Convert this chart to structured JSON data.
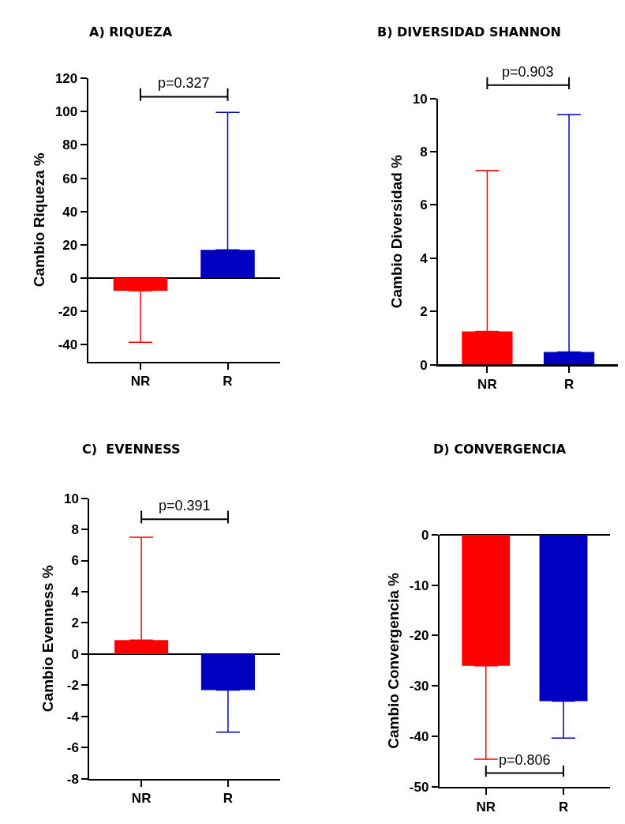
{
  "chart_data": [
    {
      "type": "bar",
      "title": "A) RIQUEZA",
      "ylabel": "Cambio Riqueza %",
      "categories": [
        "NR",
        "R"
      ],
      "values": [
        -7.5,
        17
      ],
      "colors": [
        "#ff0000",
        "#0000c0"
      ],
      "errors": [
        [
          -38.5,
          -7.5
        ],
        [
          17,
          99.5
        ]
      ],
      "ylim": [
        -50,
        120
      ],
      "yticks": [
        -40,
        -20,
        0,
        20,
        40,
        60,
        80,
        100,
        120
      ],
      "annotations": [
        "p=0.327"
      ]
    },
    {
      "type": "bar",
      "title": "B) DIVERSIDAD SHANNON",
      "ylabel": "Cambio Diversidad %",
      "categories": [
        "NR",
        "R"
      ],
      "values": [
        1.25,
        0.48
      ],
      "colors": [
        "#ff0000",
        "#0000c0"
      ],
      "errors": [
        [
          1.25,
          7.3
        ],
        [
          0.48,
          9.4
        ]
      ],
      "ylim": [
        0,
        10
      ],
      "yticks": [
        0,
        2,
        4,
        6,
        8,
        10
      ],
      "annotations": [
        "p=0.903"
      ]
    },
    {
      "type": "bar",
      "title": "C)  EVENNESS",
      "ylabel": "Cambio Evenness %",
      "categories": [
        "NR",
        "R"
      ],
      "values": [
        0.9,
        -2.3
      ],
      "colors": [
        "#ff0000",
        "#0000c0"
      ],
      "errors": [
        [
          0.9,
          7.5
        ],
        [
          -5,
          -2.3
        ]
      ],
      "ylim": [
        -8,
        10
      ],
      "yticks": [
        -8,
        -6,
        -4,
        -2,
        0,
        2,
        4,
        6,
        8,
        10
      ],
      "annotations": [
        "p=0.391"
      ]
    },
    {
      "type": "bar",
      "title": "D) CONVERGENCIA",
      "ylabel": "Cambio Convergencia %",
      "categories": [
        "NR",
        "R"
      ],
      "values": [
        -26,
        -33
      ],
      "colors": [
        "#ff0000",
        "#0000c0"
      ],
      "errors": [
        [
          -44.5,
          -26
        ],
        [
          -40.3,
          -33
        ]
      ],
      "ylim": [
        -50,
        0
      ],
      "yticks": [
        -50,
        -40,
        -30,
        -20,
        -10,
        0
      ],
      "annotations": [
        "p=0.806"
      ]
    }
  ]
}
